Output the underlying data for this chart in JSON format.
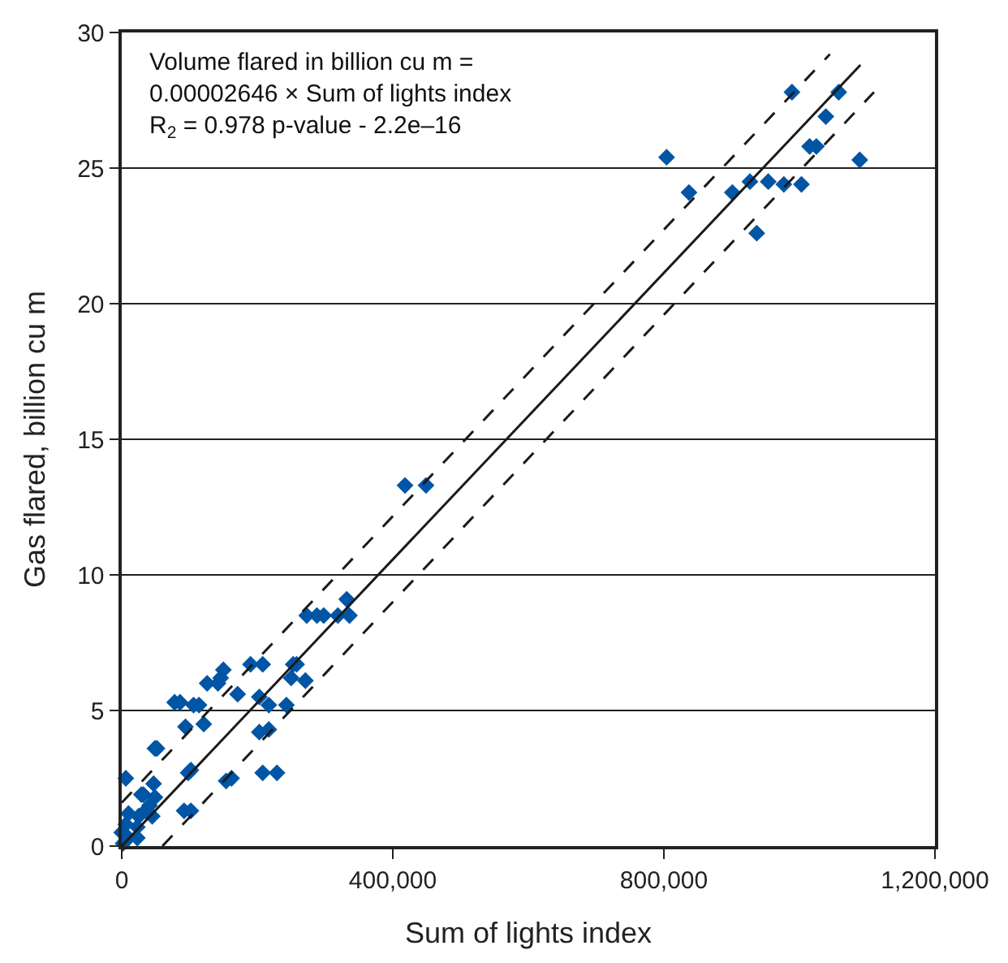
{
  "chart_data": {
    "type": "scatter",
    "xlabel": "Sum of lights index",
    "ylabel": "Gas flared, billion cu m",
    "xlim": [
      0,
      1200000
    ],
    "xticks": [
      0,
      {
        "value": 400000,
        "label": "400,000"
      },
      {
        "value": 800000,
        "label": "800,000"
      },
      {
        "value": 1200000,
        "label": "1,200,000"
      }
    ],
    "ylim": [
      0,
      30
    ],
    "yticks": [
      0,
      5,
      10,
      15,
      20,
      25,
      30
    ],
    "grid": "y",
    "annotations": [
      "Volume flared in billion cu m =\n0.00002646 × Sum of lights index\nR$_{2}$ = 0.978 p-value - 2.2e–16"
    ],
    "series": [
      {
        "color": "#0055a5",
        "marker": "diamond",
        "x": [
          804000,
          837000,
          901000,
          927000,
          937000,
          954000,
          977000,
          1003000,
          989000,
          1058000,
          1039000,
          1015000,
          1025000,
          1089000,
          418000,
          449000,
          332000,
          273000,
          288000,
          298000,
          319000,
          336000,
          150000,
          190000,
          208000,
          253000,
          258000,
          126000,
          146000,
          142000,
          250000,
          271000,
          171000,
          78000,
          86000,
          106000,
          114000,
          203000,
          217000,
          243000,
          94000,
          121000,
          203000,
          217000,
          49000,
          52000,
          102000,
          98000,
          154000,
          162000,
          208000,
          229000,
          92000,
          102000,
          47000,
          49000,
          45000,
          29000,
          41000,
          35000,
          25000,
          23000,
          23000,
          6000,
          10000,
          0,
          2000,
          32000,
          6000,
          10000
        ],
        "values": [
          25.4,
          24.1,
          24.1,
          24.5,
          22.6,
          24.5,
          24.4,
          24.4,
          27.8,
          27.8,
          26.9,
          25.8,
          25.8,
          25.3,
          13.3,
          13.3,
          9.1,
          8.5,
          8.5,
          8.5,
          8.5,
          8.5,
          6.5,
          6.7,
          6.7,
          6.7,
          6.7,
          6.0,
          6.2,
          6.0,
          6.2,
          6.1,
          5.6,
          5.3,
          5.3,
          5.2,
          5.2,
          5.5,
          5.2,
          5.2,
          4.4,
          4.5,
          4.2,
          4.3,
          3.6,
          3.6,
          2.8,
          2.7,
          2.4,
          2.5,
          2.7,
          2.7,
          1.3,
          1.3,
          2.3,
          1.8,
          1.1,
          1.9,
          1.5,
          1.3,
          1.1,
          0.7,
          0.3,
          2.5,
          1.2,
          0.5,
          0.1,
          1.9,
          0.8,
          0.3
        ]
      },
      {
        "type": "line",
        "color": "#1a1a1a",
        "line_style": "solid",
        "x": [
          0,
          1090000
        ],
        "values": [
          0,
          28.8
        ]
      },
      {
        "type": "line",
        "color": "#1a1a1a",
        "line_style": "dashed",
        "x": [
          0,
          1045000
        ],
        "values": [
          1.6,
          29.2
        ]
      },
      {
        "type": "line",
        "color": "#1a1a1a",
        "line_style": "dashed",
        "x": [
          60000,
          1110000
        ],
        "values": [
          0,
          27.8
        ]
      }
    ]
  }
}
